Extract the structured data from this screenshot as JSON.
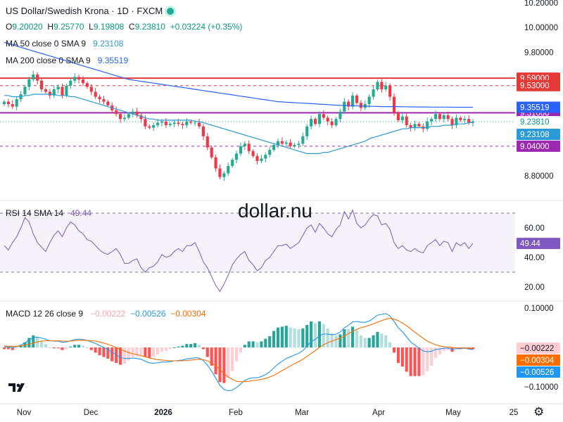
{
  "header": {
    "title": "US Dollar/Swedish Krona · 1D · FXCM",
    "ohlc": {
      "o_label": "O",
      "o": "9.20020",
      "h_label": "H",
      "h": "9.25770",
      "l_label": "L",
      "l": "9.19808",
      "c_label": "C",
      "c": "9.23810",
      "change": "+0.03224 (+0.35%)"
    },
    "ma50": {
      "label": "MA 50 close 0 SMA 9",
      "value": "9.23108"
    },
    "ma200": {
      "label": "MA 200 close 0 SMA 9",
      "value": "9.35519"
    },
    "rsi": {
      "label": "RSI 14 SMA 14",
      "value": "49.44"
    },
    "macd": {
      "label": "MACD 12 26 close 9",
      "hist": "−0.00222",
      "macd": "−0.00526",
      "signal": "−0.00304"
    }
  },
  "watermark": "dollar.nu",
  "colors": {
    "up": "#22ab94",
    "down": "#f23645",
    "ma50": "#2d9ad8",
    "ma200": "#2962ff",
    "red_line": "#e53935",
    "purple_line": "#9c27b0",
    "rsi": "#7e57c2",
    "macd": "#2196f3",
    "signal": "#ff6d00"
  },
  "chart_data": [
    {
      "type": "candlestick",
      "title": "US Dollar/Swedish Krona · 1D · FXCM",
      "x_ticks": [
        "Nov",
        "Dec",
        "2026",
        "Feb",
        "Mar",
        "Apr",
        "May",
        "25"
      ],
      "y_ticks": [
        "10.20000",
        "10.00000",
        "9.80000",
        "8.80000"
      ],
      "ylim": [
        8.67,
        10.2
      ],
      "levels": [
        {
          "value": 9.59,
          "label": "9.59000",
          "style": "solid",
          "color": "#e53935"
        },
        {
          "value": 9.53,
          "label": "9.53000",
          "style": "dashed",
          "color": "#e53935"
        },
        {
          "value": 9.31,
          "label": "9.31000",
          "style": "solid",
          "color": "#9c27b0"
        },
        {
          "value": 9.04,
          "label": "9.04000",
          "style": "dashed",
          "color": "#9c27b0"
        }
      ],
      "last": {
        "close": 9.2381,
        "label": "9.23810",
        "ma50": 9.23108,
        "ma50_label": "9.23108",
        "ma200": 9.35519,
        "ma200_label": "9.35519"
      },
      "closes": [
        9.4,
        9.38,
        9.36,
        9.42,
        9.46,
        9.52,
        9.58,
        9.62,
        9.57,
        9.5,
        9.48,
        9.45,
        9.5,
        9.52,
        9.45,
        9.53,
        9.57,
        9.6,
        9.58,
        9.55,
        9.52,
        9.48,
        9.44,
        9.42,
        9.4,
        9.37,
        9.33,
        9.3,
        9.26,
        9.27,
        9.3,
        9.32,
        9.29,
        9.26,
        9.2,
        9.19,
        9.21,
        9.23,
        9.24,
        9.21,
        9.22,
        9.23,
        9.22,
        9.21,
        9.24,
        9.23,
        9.23,
        9.2,
        9.12,
        9.03,
        8.95,
        8.86,
        8.79,
        8.82,
        8.88,
        8.93,
        8.98,
        9.04,
        9.06,
        9.0,
        8.96,
        8.92,
        8.94,
        8.97,
        9.01,
        9.05,
        9.08,
        9.06,
        9.07,
        9.04,
        9.05,
        9.06,
        9.12,
        9.2,
        9.26,
        9.22,
        9.3,
        9.27,
        9.24,
        9.21,
        9.26,
        9.32,
        9.4,
        9.36,
        9.45,
        9.39,
        9.35,
        9.38,
        9.44,
        9.5,
        9.56,
        9.5,
        9.53,
        9.44,
        9.31,
        9.25,
        9.28,
        9.21,
        9.19,
        9.22,
        9.2,
        9.18,
        9.24,
        9.26,
        9.3,
        9.26,
        9.29,
        9.26,
        9.21,
        9.27,
        9.25,
        9.26,
        9.23,
        9.24
      ],
      "ma50": [
        9.45,
        9.45,
        9.44,
        9.44,
        9.44,
        9.45,
        9.45,
        9.46,
        9.46,
        9.46,
        9.46,
        9.46,
        9.46,
        9.45,
        9.45,
        9.45,
        9.44,
        9.44,
        9.43,
        9.42,
        9.41,
        9.4,
        9.39,
        9.38,
        9.37,
        9.36,
        9.35,
        9.34,
        9.33,
        9.32,
        9.31,
        9.3,
        9.29,
        9.28,
        9.27,
        9.26,
        9.26,
        9.25,
        9.25,
        9.25,
        9.25,
        9.25,
        9.25,
        9.25,
        9.25,
        9.25,
        9.24,
        9.24,
        9.23,
        9.22,
        9.21,
        9.2,
        9.19,
        9.18,
        9.17,
        9.16,
        9.15,
        9.14,
        9.13,
        9.12,
        9.11,
        9.1,
        9.09,
        9.08,
        9.07,
        9.06,
        9.05,
        9.04,
        9.03,
        9.02,
        9.01,
        9.0,
        8.99,
        8.98,
        8.98,
        8.98,
        8.98,
        8.99,
        8.99,
        9.0,
        9.01,
        9.02,
        9.03,
        9.04,
        9.05,
        9.06,
        9.07,
        9.08,
        9.1,
        9.11,
        9.12,
        9.13,
        9.14,
        9.15,
        9.16,
        9.17,
        9.18,
        9.18,
        9.19,
        9.19,
        9.19,
        9.19,
        9.19,
        9.2,
        9.2,
        9.2,
        9.21,
        9.21,
        9.21,
        9.22,
        9.22,
        9.22,
        9.23,
        9.23
      ],
      "ma200": [
        9.88,
        9.87,
        9.86,
        9.85,
        9.84,
        9.83,
        9.82,
        9.81,
        9.8,
        9.79,
        9.78,
        9.77,
        9.76,
        9.75,
        9.74,
        9.73,
        9.72,
        9.71,
        9.7,
        9.69,
        9.68,
        9.67,
        9.66,
        9.65,
        9.64,
        9.63,
        9.62,
        9.61,
        9.6,
        9.59,
        9.58,
        9.575,
        9.57,
        9.565,
        9.56,
        9.555,
        9.55,
        9.545,
        9.54,
        9.535,
        9.53,
        9.525,
        9.52,
        9.515,
        9.51,
        9.505,
        9.5,
        9.495,
        9.49,
        9.485,
        9.48,
        9.475,
        9.47,
        9.465,
        9.46,
        9.455,
        9.45,
        9.445,
        9.44,
        9.435,
        9.43,
        9.425,
        9.42,
        9.415,
        9.41,
        9.405,
        9.4,
        9.398,
        9.396,
        9.394,
        9.392,
        9.39,
        9.388,
        9.386,
        9.384,
        9.382,
        9.38,
        9.378,
        9.376,
        9.374,
        9.372,
        9.37,
        9.369,
        9.368,
        9.367,
        9.366,
        9.365,
        9.364,
        9.363,
        9.362,
        9.361,
        9.36,
        9.36,
        9.36,
        9.36,
        9.36,
        9.359,
        9.359,
        9.358,
        9.358,
        9.357,
        9.357,
        9.357,
        9.356,
        9.356,
        9.356,
        9.356,
        9.356,
        9.355,
        9.355,
        9.355,
        9.355,
        9.355,
        9.355
      ]
    },
    {
      "type": "line",
      "title": "RSI 14 SMA 14",
      "y_ticks": [
        "60.00",
        "40.00",
        "20.00"
      ],
      "ylim": [
        10,
        75
      ],
      "band": [
        30,
        70
      ],
      "last_label": "49.44",
      "values": [
        48,
        45,
        50,
        54,
        60,
        67,
        64,
        56,
        50,
        47,
        44,
        50,
        55,
        58,
        54,
        60,
        64,
        62,
        58,
        56,
        52,
        51,
        48,
        45,
        43,
        42,
        44,
        46,
        42,
        36,
        36,
        38,
        39,
        33,
        30,
        33,
        34,
        37,
        42,
        40,
        41,
        44,
        46,
        44,
        48,
        48,
        50,
        44,
        37,
        33,
        27,
        21,
        17,
        22,
        28,
        35,
        39,
        42,
        44,
        38,
        35,
        31,
        33,
        38,
        40,
        44,
        48,
        48,
        49,
        46,
        48,
        50,
        55,
        60,
        62,
        57,
        63,
        60,
        56,
        54,
        59,
        62,
        71,
        66,
        72,
        63,
        60,
        62,
        66,
        69,
        68,
        62,
        63,
        59,
        50,
        46,
        48,
        45,
        44,
        46,
        44,
        43,
        48,
        50,
        52,
        48,
        51,
        50,
        44,
        50,
        48,
        50,
        46,
        49.44
      ]
    },
    {
      "type": "line",
      "title": "MACD 12 26 close 9",
      "y_ticks": [
        "0.10000",
        "−0.10000"
      ],
      "ylim": [
        -0.14,
        0.14
      ],
      "last": {
        "hist": "−0.00222",
        "macd": "−0.00526",
        "signal": "−0.00304"
      },
      "macd": [
        0.002,
        0.001,
        0.0,
        0.002,
        0.006,
        0.012,
        0.019,
        0.025,
        0.026,
        0.024,
        0.021,
        0.017,
        0.016,
        0.016,
        0.013,
        0.014,
        0.017,
        0.02,
        0.021,
        0.02,
        0.018,
        0.014,
        0.01,
        0.005,
        0.0,
        -0.005,
        -0.012,
        -0.018,
        -0.025,
        -0.028,
        -0.028,
        -0.027,
        -0.028,
        -0.03,
        -0.035,
        -0.039,
        -0.04,
        -0.039,
        -0.037,
        -0.037,
        -0.036,
        -0.034,
        -0.033,
        -0.032,
        -0.029,
        -0.028,
        -0.026,
        -0.027,
        -0.033,
        -0.045,
        -0.06,
        -0.078,
        -0.096,
        -0.107,
        -0.11,
        -0.108,
        -0.102,
        -0.093,
        -0.084,
        -0.079,
        -0.077,
        -0.077,
        -0.074,
        -0.069,
        -0.062,
        -0.052,
        -0.042,
        -0.035,
        -0.028,
        -0.024,
        -0.019,
        -0.015,
        -0.008,
        0.003,
        0.015,
        0.02,
        0.03,
        0.034,
        0.034,
        0.032,
        0.034,
        0.039,
        0.05,
        0.056,
        0.065,
        0.066,
        0.064,
        0.064,
        0.067,
        0.074,
        0.082,
        0.084,
        0.086,
        0.08,
        0.066,
        0.05,
        0.04,
        0.027,
        0.014,
        0.006,
        -0.002,
        -0.009,
        -0.011,
        -0.01,
        -0.005,
        -0.004,
        -0.002,
        -0.002,
        -0.005,
        -0.003,
        -0.003,
        -0.002,
        -0.004,
        -0.00526
      ],
      "signal": [
        0.004,
        0.003,
        0.003,
        0.003,
        0.004,
        0.006,
        0.008,
        0.011,
        0.014,
        0.016,
        0.017,
        0.017,
        0.017,
        0.017,
        0.016,
        0.016,
        0.016,
        0.017,
        0.018,
        0.018,
        0.018,
        0.017,
        0.016,
        0.014,
        0.011,
        0.008,
        0.004,
        0.0,
        -0.005,
        -0.009,
        -0.013,
        -0.016,
        -0.018,
        -0.021,
        -0.024,
        -0.027,
        -0.029,
        -0.031,
        -0.032,
        -0.033,
        -0.034,
        -0.034,
        -0.034,
        -0.034,
        -0.033,
        -0.032,
        -0.031,
        -0.03,
        -0.031,
        -0.034,
        -0.039,
        -0.047,
        -0.056,
        -0.066,
        -0.075,
        -0.081,
        -0.086,
        -0.087,
        -0.087,
        -0.086,
        -0.084,
        -0.083,
        -0.081,
        -0.079,
        -0.075,
        -0.071,
        -0.065,
        -0.059,
        -0.053,
        -0.047,
        -0.041,
        -0.036,
        -0.03,
        -0.023,
        -0.015,
        -0.008,
        0.0,
        0.007,
        0.012,
        0.016,
        0.02,
        0.024,
        0.029,
        0.035,
        0.041,
        0.046,
        0.05,
        0.053,
        0.056,
        0.06,
        0.064,
        0.068,
        0.072,
        0.074,
        0.072,
        0.068,
        0.062,
        0.055,
        0.047,
        0.039,
        0.031,
        0.023,
        0.016,
        0.011,
        0.007,
        0.004,
        0.002,
        0.001,
        0.0,
        -0.001,
        -0.001,
        -0.002,
        -0.002,
        -0.00304
      ]
    }
  ]
}
